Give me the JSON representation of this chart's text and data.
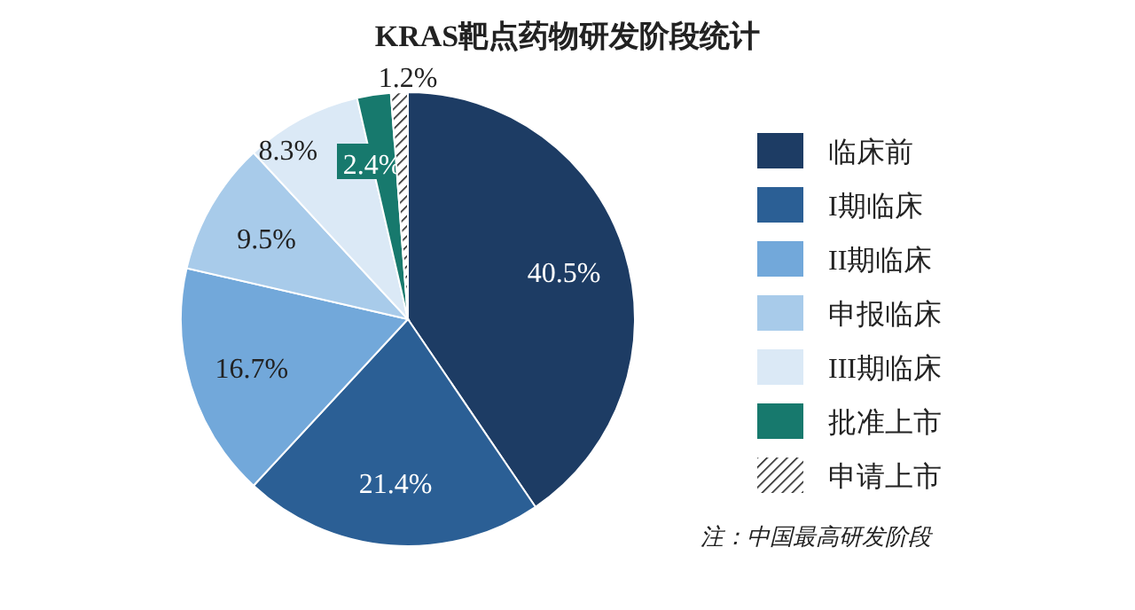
{
  "chart_data": {
    "type": "pie",
    "title": "KRAS靶点药物研发阶段统计",
    "categories": [
      "临床前",
      "I期临床",
      "II期临床",
      "申报临床",
      "III期临床",
      "批准上市",
      "申请上市"
    ],
    "values": [
      40.5,
      21.4,
      16.7,
      9.5,
      8.3,
      2.4,
      1.2
    ],
    "colors": [
      "#1d3c64",
      "#2b5f95",
      "#72a8da",
      "#a8cbea",
      "#dbe9f6",
      "#17796d",
      "#ffffff"
    ],
    "value_labels": [
      "40.5%",
      "21.4%",
      "16.7%",
      "9.5%",
      "8.3%",
      "2.4%",
      "1.2%"
    ],
    "legend": "right",
    "annotations": [
      "注：中国最高研发阶段"
    ]
  }
}
